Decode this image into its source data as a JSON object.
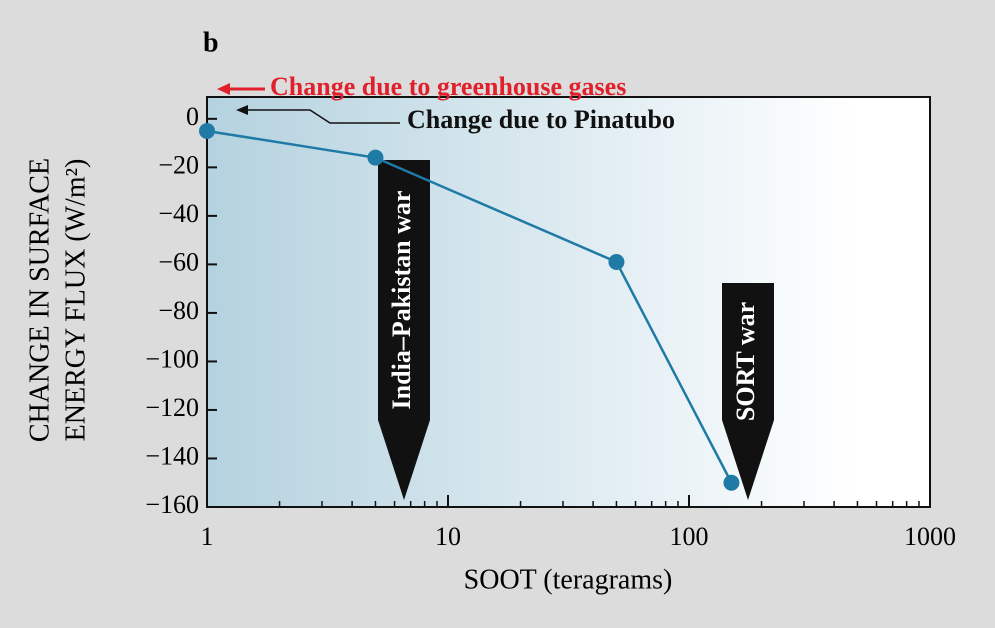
{
  "chart_data": {
    "type": "line",
    "panel_label": "b",
    "x_label": "SOOT (teragrams)",
    "y_label_lines": [
      "CHANGE IN SURFACE",
      "ENERGY FLUX (W/m²)"
    ],
    "x": [
      1,
      5,
      50,
      150
    ],
    "series": [
      {
        "name": "Change in surface energy flux",
        "color": "#1f7ba6",
        "values": [
          -5,
          -16,
          -59,
          -150
        ]
      }
    ],
    "xlog": true,
    "xlim": [
      1,
      1000
    ],
    "xticks": [
      1,
      10,
      100,
      1000
    ],
    "ylim": [
      -160,
      9
    ],
    "yticks": [
      0,
      {
        "value": -20,
        "label": "−20"
      },
      {
        "value": -40,
        "label": "−40"
      },
      {
        "value": -60,
        "label": "−60"
      },
      {
        "value": -80,
        "label": "−80"
      },
      {
        "value": -100,
        "label": "−100"
      },
      {
        "value": -120,
        "label": "−120"
      },
      {
        "value": -140,
        "label": "−140"
      },
      {
        "value": -160,
        "label": "−160"
      }
    ],
    "annotations": [
      {
        "text": "Change due to greenhouse gases",
        "color": "#e0202a"
      },
      {
        "text": "Change due to Pinatubo",
        "color": "#111111"
      },
      {
        "text": "India–Pakistan war",
        "color": "#ffffff"
      },
      {
        "text": "SORT war",
        "color": "#ffffff"
      }
    ]
  }
}
